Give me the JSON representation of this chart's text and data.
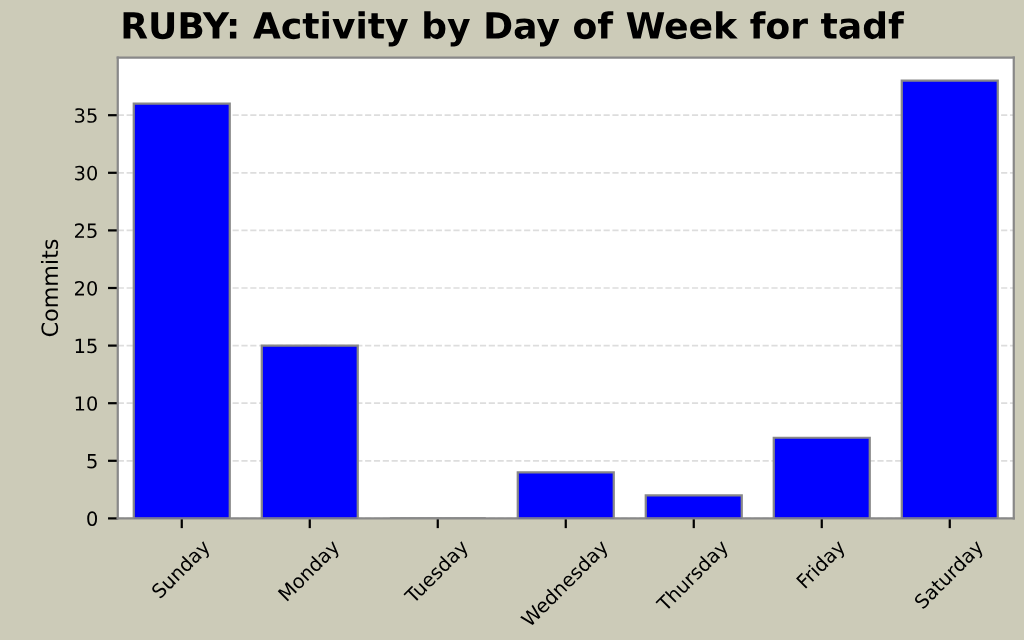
{
  "chart_data": {
    "type": "bar",
    "title": "RUBY: Activity by Day of Week for tadf",
    "ylabel": "Commits",
    "categories": [
      "Sunday",
      "Monday",
      "Tuesday",
      "Wednesday",
      "Thursday",
      "Friday",
      "Saturday"
    ],
    "values": [
      36,
      15,
      0,
      4,
      2,
      7,
      38
    ],
    "color": "#0000ff",
    "ylim": [
      0,
      40
    ],
    "yticks": [
      0,
      5,
      10,
      15,
      20,
      25,
      30,
      35
    ],
    "grid": "y"
  }
}
